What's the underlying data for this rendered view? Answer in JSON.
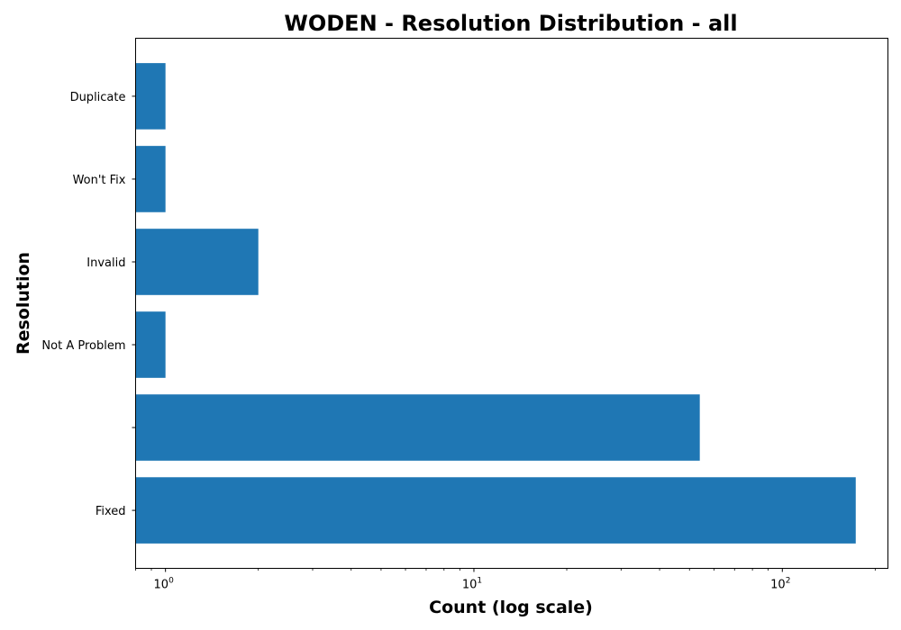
{
  "chart_data": {
    "type": "bar",
    "orientation": "horizontal",
    "title": "WODEN - Resolution Distribution - all",
    "xlabel": "Count (log scale)",
    "ylabel": "Resolution",
    "x_scale": "log",
    "xlim": [
      0.8,
      220
    ],
    "x_ticks": [
      {
        "base": "10",
        "exponent": "0",
        "value": 1
      },
      {
        "base": "10",
        "exponent": "1",
        "value": 10
      },
      {
        "base": "10",
        "exponent": "2",
        "value": 100
      }
    ],
    "categories": [
      "Duplicate",
      "Won't Fix",
      "Invalid",
      "Not A Problem",
      "",
      "Fixed"
    ],
    "values": [
      1,
      1,
      2,
      1,
      54,
      173
    ],
    "bar_color": "#1f77b4",
    "grid": false,
    "legend": "none"
  }
}
